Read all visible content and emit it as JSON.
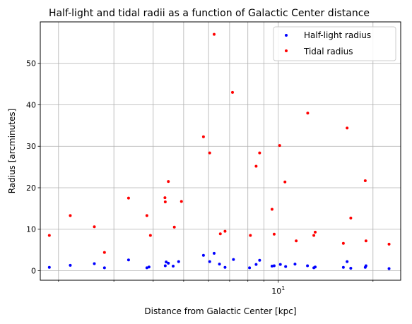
{
  "chart_data": {
    "type": "scatter",
    "title": "Half-light and tidal radii as a function of Galactic Center distance",
    "xlabel": "Distance from Galactic Center [kpc]",
    "ylabel": "Radius [arcminutes]",
    "xscale": "log",
    "xlim": [
      1.75,
      24.5
    ],
    "ylim": [
      -2.3,
      60
    ],
    "xticks_major": [
      {
        "value": 10,
        "base": "10",
        "exp": "1"
      }
    ],
    "xticks_minor": [
      2,
      3,
      4,
      5,
      6,
      7,
      8,
      9,
      20
    ],
    "yticks": [
      0,
      10,
      20,
      30,
      40,
      50
    ],
    "grid": true,
    "legend_position": "top-right",
    "series": [
      {
        "name": "Half-light radius",
        "color": "#0000ff",
        "points": [
          [
            1.87,
            0.8
          ],
          [
            2.18,
            1.3
          ],
          [
            2.6,
            1.7
          ],
          [
            2.8,
            0.7
          ],
          [
            3.34,
            2.6
          ],
          [
            3.82,
            0.7
          ],
          [
            3.88,
            0.9
          ],
          [
            4.37,
            1.2
          ],
          [
            4.4,
            2.1
          ],
          [
            4.47,
            1.8
          ],
          [
            4.63,
            1.1
          ],
          [
            4.82,
            2.2
          ],
          [
            5.78,
            3.7
          ],
          [
            6.05,
            2.2
          ],
          [
            6.25,
            4.2
          ],
          [
            6.5,
            1.6
          ],
          [
            6.77,
            0.8
          ],
          [
            7.2,
            2.7
          ],
          [
            8.1,
            0.7
          ],
          [
            8.5,
            1.5
          ],
          [
            8.72,
            2.5
          ],
          [
            9.55,
            1.1
          ],
          [
            9.7,
            1.2
          ],
          [
            10.15,
            1.5
          ],
          [
            10.55,
            1.0
          ],
          [
            11.3,
            1.6
          ],
          [
            12.38,
            1.2
          ],
          [
            12.97,
            0.7
          ],
          [
            13.1,
            0.9
          ],
          [
            16.1,
            0.8
          ],
          [
            16.55,
            2.2
          ],
          [
            17.0,
            0.6
          ],
          [
            18.9,
            0.8
          ],
          [
            19.0,
            1.2
          ],
          [
            22.5,
            0.5
          ]
        ]
      },
      {
        "name": "Tidal radius",
        "color": "#ff0000",
        "points": [
          [
            1.87,
            8.5
          ],
          [
            2.18,
            13.3
          ],
          [
            2.6,
            10.6
          ],
          [
            2.8,
            4.4
          ],
          [
            3.34,
            17.5
          ],
          [
            3.82,
            13.3
          ],
          [
            3.92,
            8.5
          ],
          [
            4.36,
            17.6
          ],
          [
            4.37,
            16.6
          ],
          [
            4.47,
            21.5
          ],
          [
            4.67,
            10.5
          ],
          [
            4.92,
            16.7
          ],
          [
            5.78,
            32.3
          ],
          [
            6.05,
            28.4
          ],
          [
            6.25,
            57.0
          ],
          [
            6.54,
            8.9
          ],
          [
            6.77,
            9.5
          ],
          [
            7.15,
            43.0
          ],
          [
            8.15,
            8.5
          ],
          [
            8.5,
            25.2
          ],
          [
            8.72,
            28.4
          ],
          [
            9.55,
            14.8
          ],
          [
            9.7,
            8.8
          ],
          [
            10.1,
            30.2
          ],
          [
            10.5,
            21.4
          ],
          [
            11.4,
            7.2
          ],
          [
            12.4,
            38.0
          ],
          [
            12.97,
            8.5
          ],
          [
            13.1,
            9.3
          ],
          [
            16.1,
            6.6
          ],
          [
            16.55,
            34.4
          ],
          [
            17.0,
            12.7
          ],
          [
            18.9,
            21.7
          ],
          [
            19.0,
            7.2
          ],
          [
            22.5,
            6.4
          ]
        ]
      }
    ]
  }
}
